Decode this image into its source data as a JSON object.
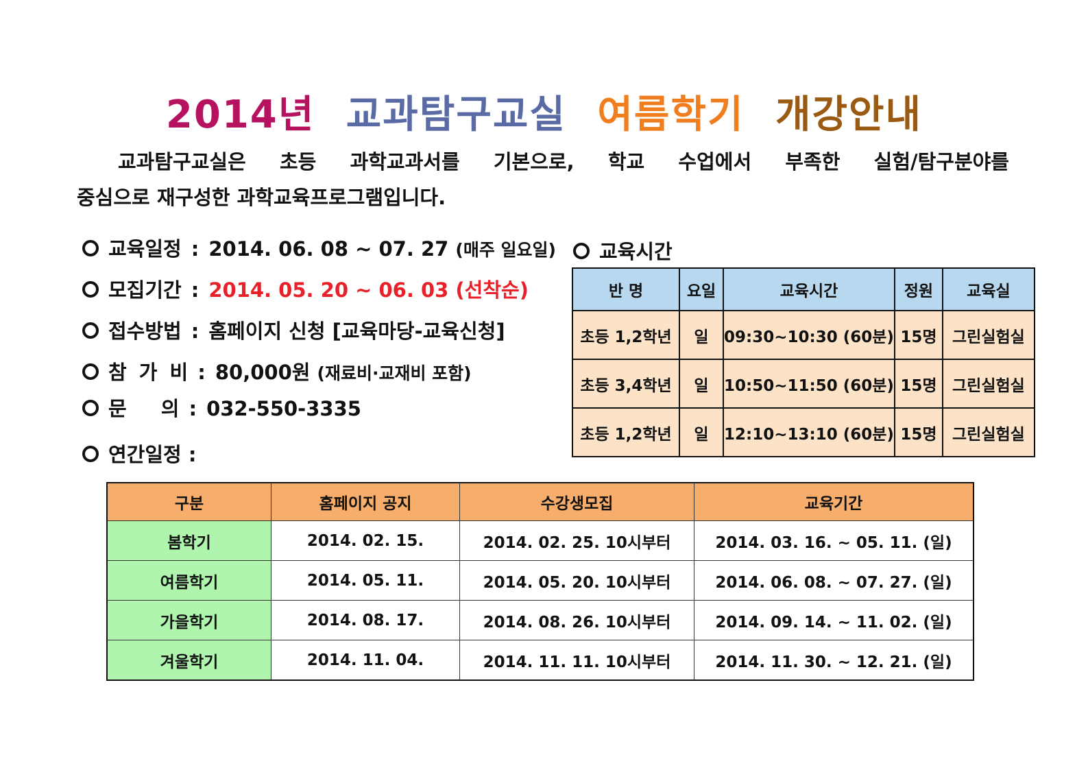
{
  "title": {
    "part1": "2014년",
    "part2": "교과탐구교실",
    "part3": "여름학기",
    "part4": "개강안내",
    "colors": [
      "#b5135f",
      "#5a6aa5",
      "#f07e1f",
      "#9a5a12"
    ]
  },
  "intro": {
    "line1": "교과탐구교실은 초등 과학교과서를 기본으로, 학교 수업에서 부족한 실험/탐구분야를",
    "line2": "중심으로 재구성한 과학교육프로그램입니다."
  },
  "info": {
    "schedule": {
      "label": "교육일정",
      "value": "2014. 06. 08 ~ 07. 27",
      "note": "(매주 일요일)"
    },
    "recruit": {
      "label": "모집기간",
      "value": "2014. 05. 20 ~ 06. 03 (선착순)"
    },
    "apply": {
      "label": "접수방법",
      "value": "홈페이지 신청 [교육마당-교육신청]"
    },
    "fee": {
      "label": "참 가 비",
      "value": "80,000원",
      "note": "(재료비·교재비 포함)"
    },
    "contact": {
      "label": "문 의",
      "value": "032-550-3335"
    },
    "annual": {
      "label": "연간일정 :"
    }
  },
  "time_table": {
    "title": "교육시간",
    "headers": [
      "반 명",
      "요일",
      "교육시간",
      "정원",
      "교육실"
    ],
    "rows": [
      [
        "초등 1,2학년",
        "일",
        "09:30~10:30 (60분)",
        "15명",
        "그린실험실"
      ],
      [
        "초등 3,4학년",
        "일",
        "10:50~11:50 (60분)",
        "15명",
        "그린실험실"
      ],
      [
        "초등 1,2학년",
        "일",
        "12:10~13:10 (60분)",
        "15명",
        "그린실험실"
      ]
    ]
  },
  "annual_table": {
    "headers": [
      "구분",
      "홈페이지 공지",
      "수강생모집",
      "교육기간"
    ],
    "rows": [
      [
        "봄학기",
        "2014. 02. 15.",
        "2014. 02. 25. 10시부터",
        "2014. 03. 16. ~ 05. 11. (일)"
      ],
      [
        "여름학기",
        "2014. 05. 11.",
        "2014. 05. 20. 10시부터",
        "2014. 06. 08. ~ 07. 27. (일)"
      ],
      [
        "가을학기",
        "2014. 08. 17.",
        "2014. 08. 26. 10시부터",
        "2014. 09. 14. ~ 11. 02. (일)"
      ],
      [
        "겨울학기",
        "2014. 11. 04.",
        "2014. 11. 11. 10시부터",
        "2014. 11. 30. ~ 12. 21. (일)"
      ]
    ]
  }
}
